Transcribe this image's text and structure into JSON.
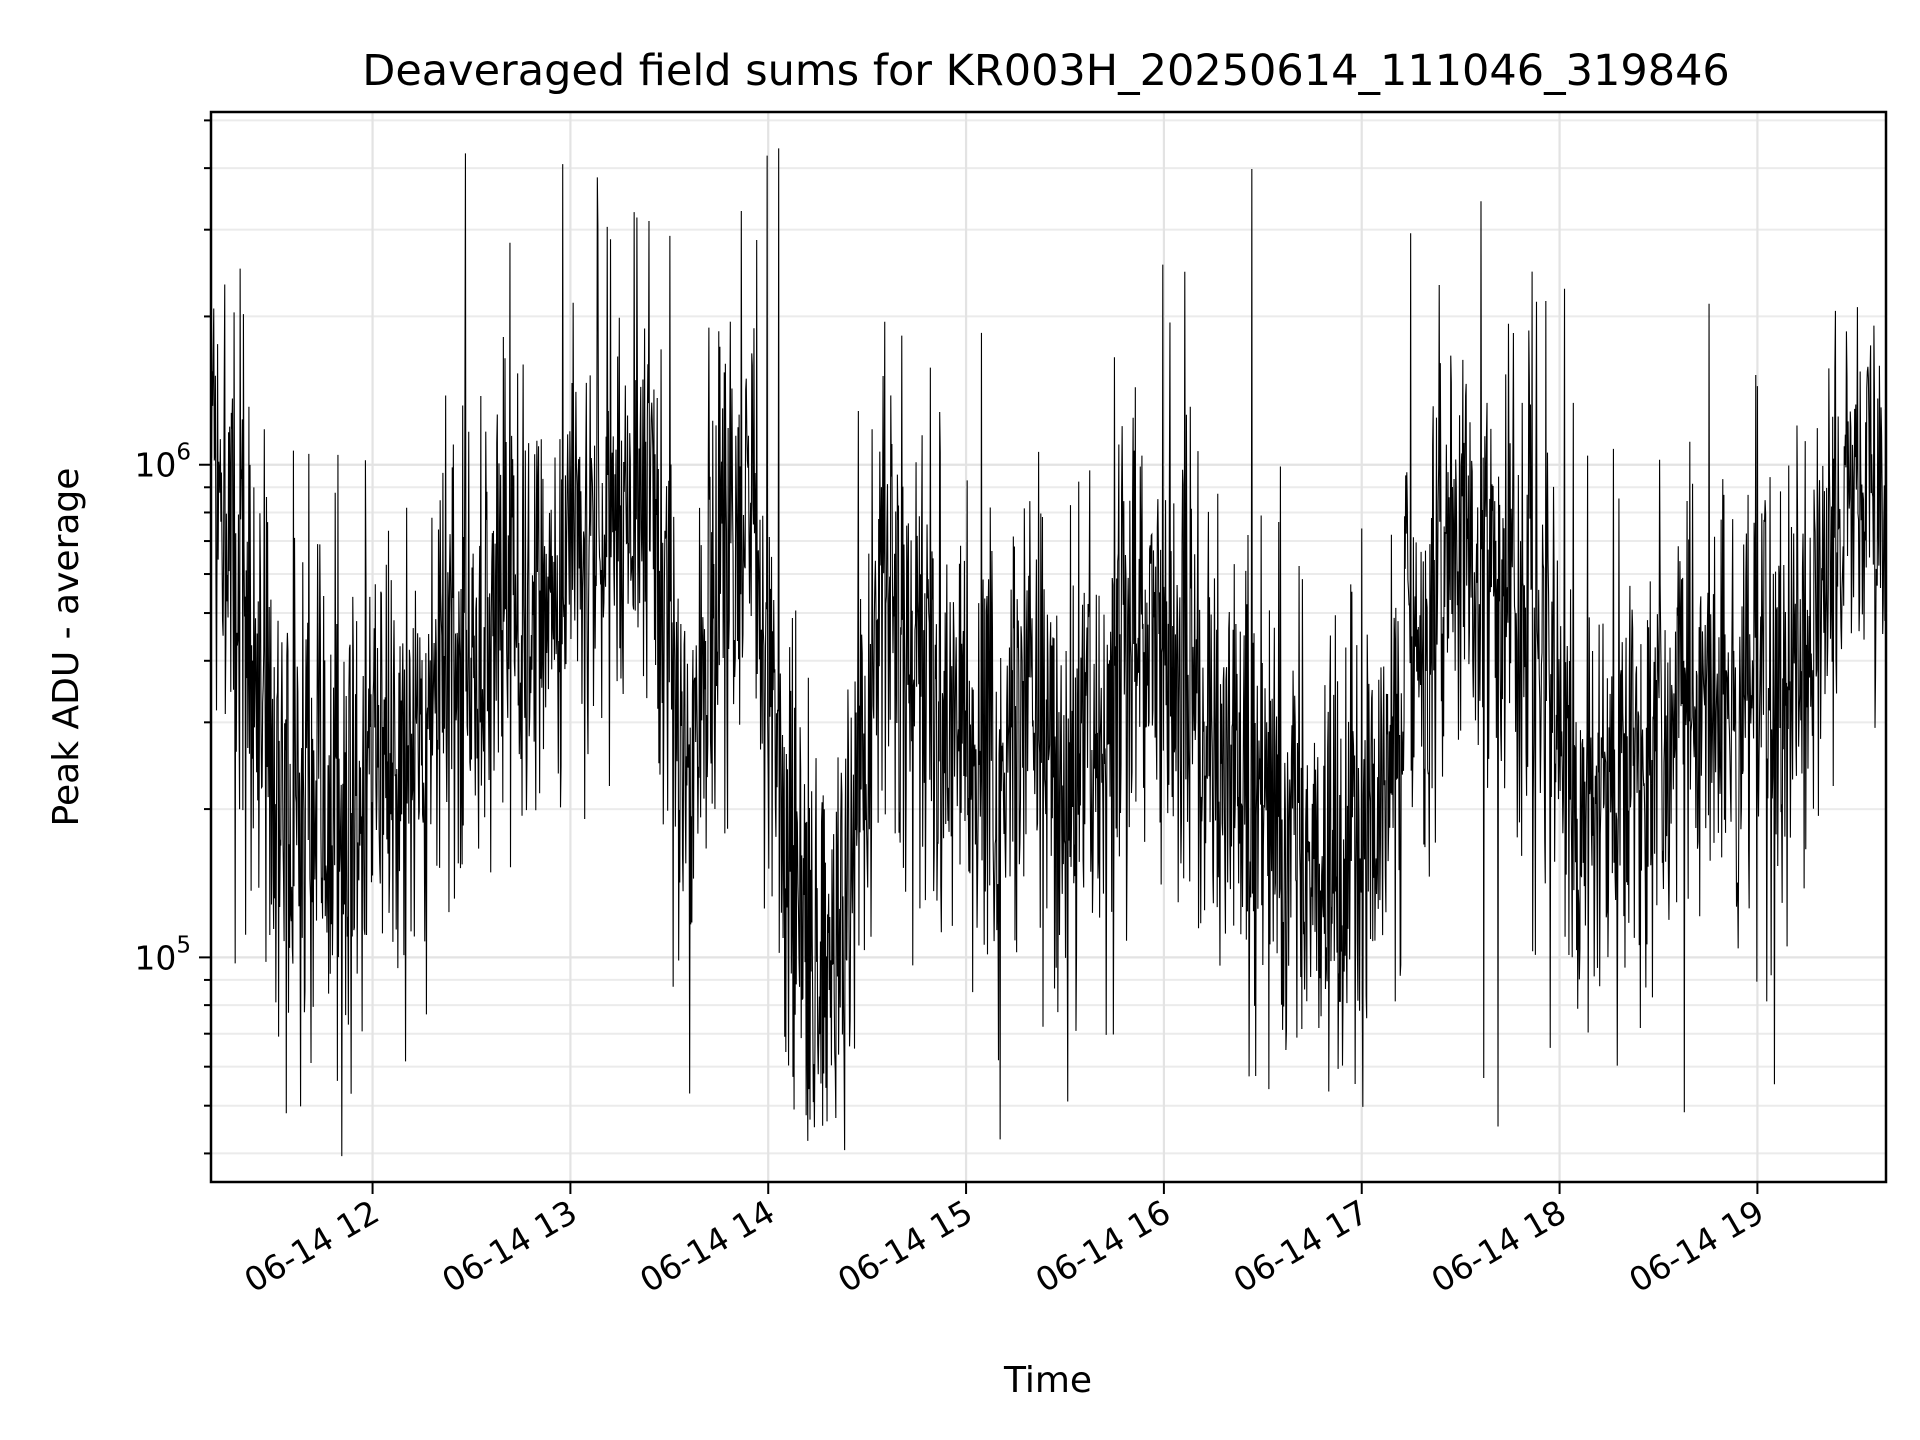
{
  "chart_data": {
    "type": "line",
    "title": "Deaveraged field sums for KR003H_20250614_111046_319846",
    "xlabel": "Time",
    "ylabel": "Peak ADU - average",
    "yscale": "log",
    "ylim": [
      35000,
      5200000
    ],
    "xlim": [
      "2025-06-14 11:11",
      "2025-06-14 19:39"
    ],
    "x_tick_labels": [
      "06-14 12",
      "06-14 13",
      "06-14 14",
      "06-14 15",
      "06-14 16",
      "06-14 17",
      "06-14 18",
      "06-14 19"
    ],
    "y_tick_labels": [
      {
        "base": "10",
        "exp": "5",
        "value": 100000
      },
      {
        "base": "10",
        "exp": "6",
        "value": 1000000
      }
    ],
    "grid": true,
    "legend": "none",
    "line_color": "#000000",
    "sample_interval_seconds": 10,
    "series_envelope": {
      "x": [
        "2025-06-14 11:11",
        "2025-06-14 11:30",
        "2025-06-14 11:45",
        "2025-06-14 12:00",
        "2025-06-14 12:15",
        "2025-06-14 12:30",
        "2025-06-14 12:45",
        "2025-06-14 13:00",
        "2025-06-14 13:15",
        "2025-06-14 13:25",
        "2025-06-14 13:35",
        "2025-06-14 13:45",
        "2025-06-14 13:55",
        "2025-06-14 14:05",
        "2025-06-14 14:20",
        "2025-06-14 14:35",
        "2025-06-14 14:50",
        "2025-06-14 15:05",
        "2025-06-14 15:20",
        "2025-06-14 15:35",
        "2025-06-14 15:50",
        "2025-06-14 16:05",
        "2025-06-14 16:20",
        "2025-06-14 16:40",
        "2025-06-14 17:00",
        "2025-06-14 17:15",
        "2025-06-14 17:30",
        "2025-06-14 17:50",
        "2025-06-14 18:05",
        "2025-06-14 18:20",
        "2025-06-14 18:40",
        "2025-06-14 19:00",
        "2025-06-14 19:15",
        "2025-06-14 19:30",
        "2025-06-14 19:39"
      ],
      "median": [
        900000,
        230000,
        180000,
        230000,
        280000,
        420000,
        500000,
        520000,
        750000,
        850000,
        200000,
        600000,
        800000,
        150000,
        90000,
        550000,
        300000,
        250000,
        300000,
        250000,
        450000,
        420000,
        250000,
        180000,
        150000,
        400000,
        700000,
        500000,
        200000,
        250000,
        300000,
        350000,
        400000,
        1000000,
        900000
      ],
      "spread_decades": [
        0.5,
        0.45,
        0.45,
        0.45,
        0.45,
        0.45,
        0.45,
        0.45,
        0.4,
        0.45,
        0.45,
        0.45,
        0.45,
        0.45,
        0.45,
        0.45,
        0.45,
        0.45,
        0.45,
        0.45,
        0.45,
        0.45,
        0.45,
        0.45,
        0.45,
        0.45,
        0.45,
        0.45,
        0.45,
        0.45,
        0.45,
        0.45,
        0.45,
        0.35,
        0.3
      ],
      "peak_max": 4400000,
      "trough_min": 39000
    }
  }
}
